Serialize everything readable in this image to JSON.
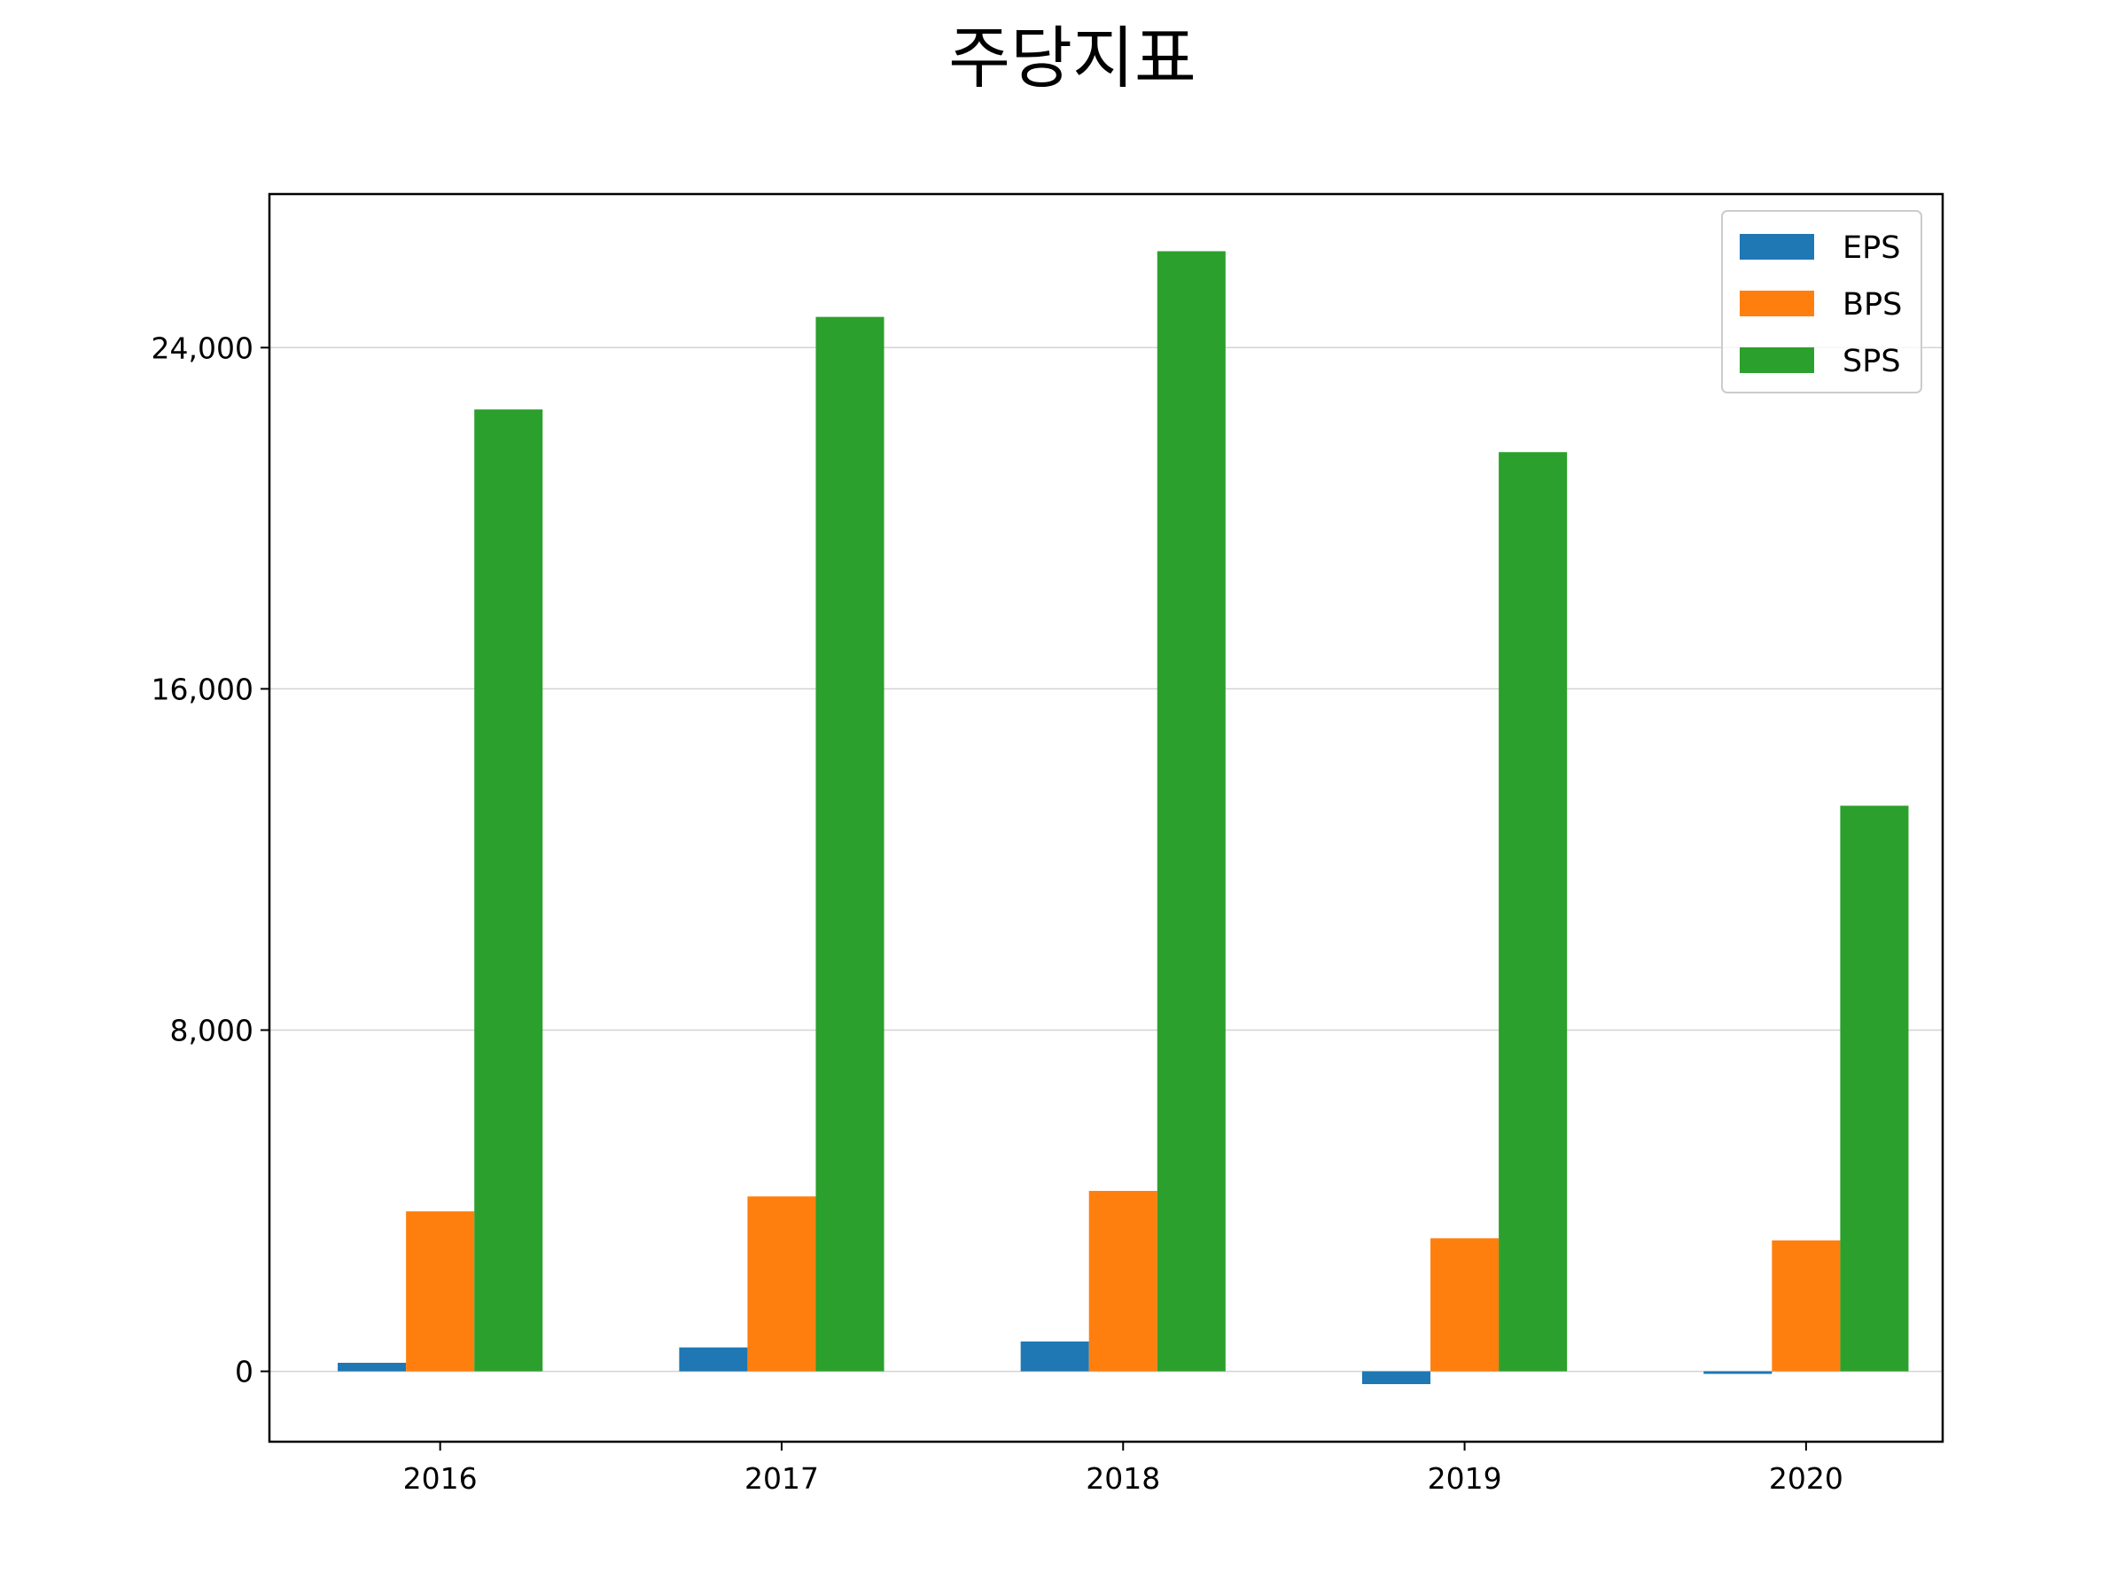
{
  "chart_data": {
    "type": "bar",
    "title": "주당지표",
    "xlabel": "",
    "ylabel": "",
    "categories": [
      "2016",
      "2017",
      "2018",
      "2019",
      "2020"
    ],
    "series": [
      {
        "name": "EPS",
        "color": "#1f77b4",
        "values": [
          200,
          560,
          700,
          -300,
          -60
        ]
      },
      {
        "name": "BPS",
        "color": "#ff7f0e",
        "values": [
          3750,
          4100,
          4230,
          3120,
          3070
        ]
      },
      {
        "name": "SPS",
        "color": "#2ca02c",
        "values": [
          22550,
          24720,
          26260,
          21550,
          13260
        ]
      }
    ],
    "yticks": [
      0,
      8000,
      16000,
      24000
    ],
    "ytick_labels": [
      "0",
      "8,000",
      "16,000",
      "24,000"
    ],
    "ylim": [
      -1650,
      27600
    ],
    "grid": "y",
    "legend": "top-right"
  }
}
